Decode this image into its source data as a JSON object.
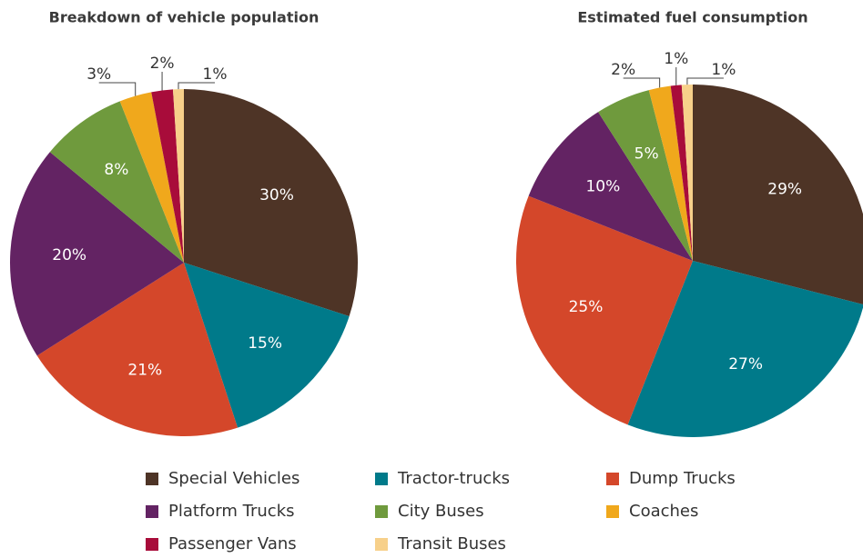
{
  "chart_data": [
    {
      "type": "pie",
      "title": "Breakdown of vehicle population",
      "categories": [
        "Special Vehicles",
        "Tractor-trucks",
        "Dump Trucks",
        "Platform Trucks",
        "City Buses",
        "Coaches",
        "Passenger Vans",
        "Transit Buses"
      ],
      "values": [
        30,
        15,
        21,
        20,
        8,
        3,
        2,
        1
      ],
      "value_labels": [
        "30%",
        "15%",
        "21%",
        "20%",
        "8%",
        "3%",
        "2%",
        "1%"
      ],
      "colors": [
        "#4e3426",
        "#007a8a",
        "#d4472a",
        "#632363",
        "#6f9a3d",
        "#f0a81c",
        "#a80c3a",
        "#f7d08a"
      ]
    },
    {
      "type": "pie",
      "title": "Estimated fuel consumption",
      "categories": [
        "Special Vehicles",
        "Tractor-trucks",
        "Dump Trucks",
        "Platform Trucks",
        "City Buses",
        "Coaches",
        "Passenger Vans",
        "Transit Buses"
      ],
      "values": [
        29,
        27,
        25,
        10,
        5,
        2,
        1,
        1
      ],
      "value_labels": [
        "29%",
        "27%",
        "25%",
        "10%",
        "5%",
        "2%",
        "1%",
        "1%"
      ],
      "colors": [
        "#4e3426",
        "#007a8a",
        "#d4472a",
        "#632363",
        "#6f9a3d",
        "#f0a81c",
        "#a80c3a",
        "#f7d08a"
      ]
    }
  ]
}
